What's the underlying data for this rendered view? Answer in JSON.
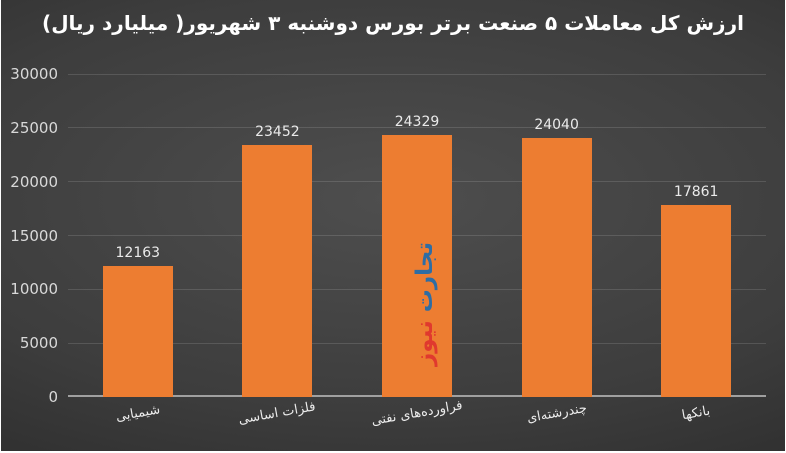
{
  "title": "ارزش کل معاملات ۵ صنعت برتر بورس دوشنبه ۳ شهریور( میلیارد ریال)",
  "watermark": {
    "word1": "تجارت",
    "word2": "نیوز",
    "word1_color": "#2e6da4",
    "word2_color": "#e0392e"
  },
  "colors": {
    "bar": "#ED7D31",
    "background_center": "#4e4e4e",
    "background_edge": "#252525",
    "gridline": "rgba(255,255,255,0.13)",
    "axis_line": "#a0a0a0",
    "tick_text": "#d9d9d9",
    "label_text": "#ececec",
    "title_text": "#ffffff"
  },
  "chart_data": {
    "type": "bar",
    "title": "ارزش کل معاملات ۵ صنعت برتر بورس دوشنبه ۳ شهریور( میلیارد ریال)",
    "categories": [
      "شیمیایی",
      "فلزات اساسی",
      "فراورده‌های نفتی",
      "چندرشته‌ای",
      "بانکها"
    ],
    "values": [
      12163,
      23452,
      24329,
      24040,
      17861
    ],
    "value_labels": [
      "12163",
      "23452",
      "24329",
      "24040",
      "17861"
    ],
    "xlabel": "",
    "ylabel": "",
    "ylim": [
      0,
      30000
    ],
    "ytick_step": 5000,
    "ytick_labels": [
      "0",
      "5000",
      "10000",
      "15000",
      "20000",
      "25000",
      "30000"
    ],
    "grid": true,
    "legend": false,
    "bar_color": "#ED7D31",
    "watermark_text": "تجارت نیوز"
  }
}
